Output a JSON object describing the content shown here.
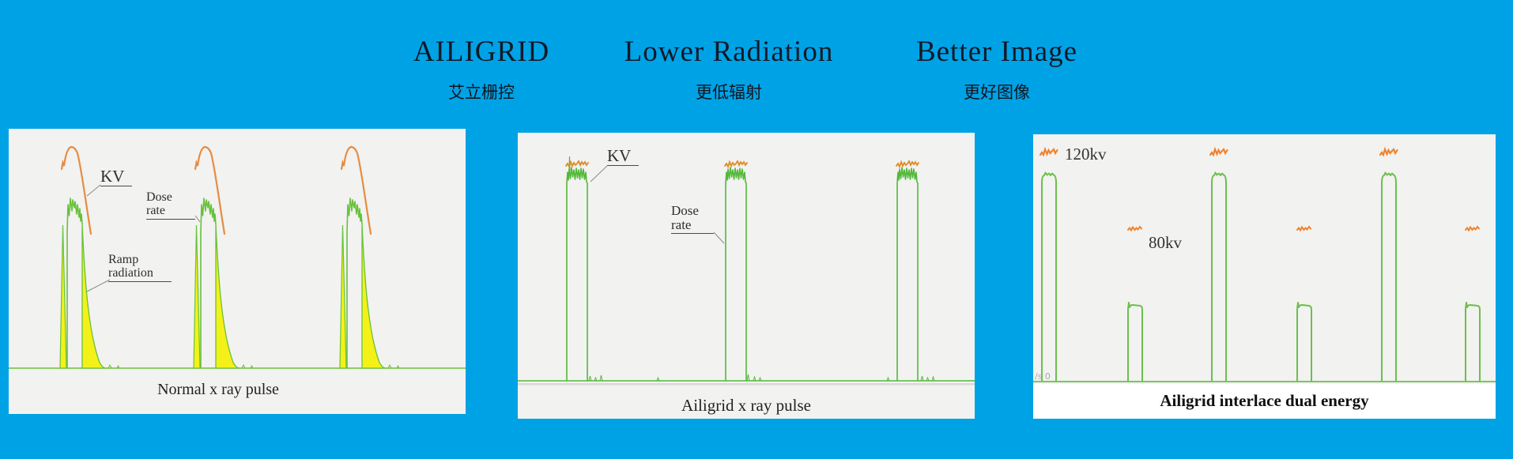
{
  "header": {
    "items": [
      {
        "title": "AILIGRID",
        "subtitle": "艾立栅控"
      },
      {
        "title": "Lower Radiation",
        "subtitle": "更低辐射"
      },
      {
        "title": "Better Image",
        "subtitle": "更好图像"
      }
    ]
  },
  "colors": {
    "background": "#00a2e6",
    "panel_bg": "#f2f2f0",
    "green_normal": "#68c13d",
    "green_mid": "#53b83a",
    "green_dual": "#6cbf4c",
    "yellow": "#f4f118",
    "orange_normal": "#e68c42",
    "orange_mid": "#dd8a28",
    "orange_dual": "#ee8430",
    "leader": "#8a8a8a",
    "title_text": "#111a28",
    "caption_text": "#222222"
  },
  "panels": {
    "normal": {
      "caption": "Normal x ray pulse",
      "label_kv": "KV",
      "label_dose_1": "Dose",
      "label_dose_2": "rate",
      "label_ramp_1": "Ramp",
      "label_ramp_2": "radiation",
      "pulse_x": [
        65,
        234,
        419
      ]
    },
    "ailigrid": {
      "caption": "Ailigrid x ray pulse",
      "label_kv": "KV",
      "label_dose_1": "Dose",
      "label_dose_2": "rate",
      "pulse_x": [
        62,
        263,
        480
      ]
    },
    "dual": {
      "caption": "Ailigrid interlace dual energy",
      "label_high": "120kv",
      "label_low": "80kv",
      "scope_text": "/s 0",
      "high_x": [
        11,
        226,
        441
      ],
      "low_x": [
        120,
        334,
        547
      ]
    }
  },
  "chart_data": [
    {
      "type": "line",
      "title": "Normal x ray pulse",
      "pulse_count": 3,
      "series": [
        {
          "name": "KV",
          "color": "#e68c42",
          "shape": "arched rise with slow trailing fall each pulse"
        },
        {
          "name": "Dose rate",
          "color": "#68c13d",
          "shape": "spiky peak with exponential decay each pulse"
        },
        {
          "name": "Ramp radiation",
          "color": "#f4f118",
          "shape": "yellow filled area on rising spike and falling ramp of each pulse"
        }
      ]
    },
    {
      "type": "line",
      "title": "Ailigrid x ray pulse",
      "pulse_count": 3,
      "series": [
        {
          "name": "KV",
          "color": "#dd8a28",
          "shape": "noisy flat segment overlapping pulse top"
        },
        {
          "name": "Dose rate",
          "color": "#53b83a",
          "shape": "clean square pulse, no ramp radiation"
        }
      ]
    },
    {
      "type": "line",
      "title": "Ailigrid interlace dual energy",
      "pattern": "alternating high/low square pulses",
      "series": [
        {
          "name": "120kv",
          "color": "#6cbf4c",
          "pulse_count": 3,
          "relative_height": 1.0
        },
        {
          "name": "80kv",
          "color": "#6cbf4c",
          "pulse_count": 3,
          "relative_height": 0.37
        }
      ]
    }
  ]
}
